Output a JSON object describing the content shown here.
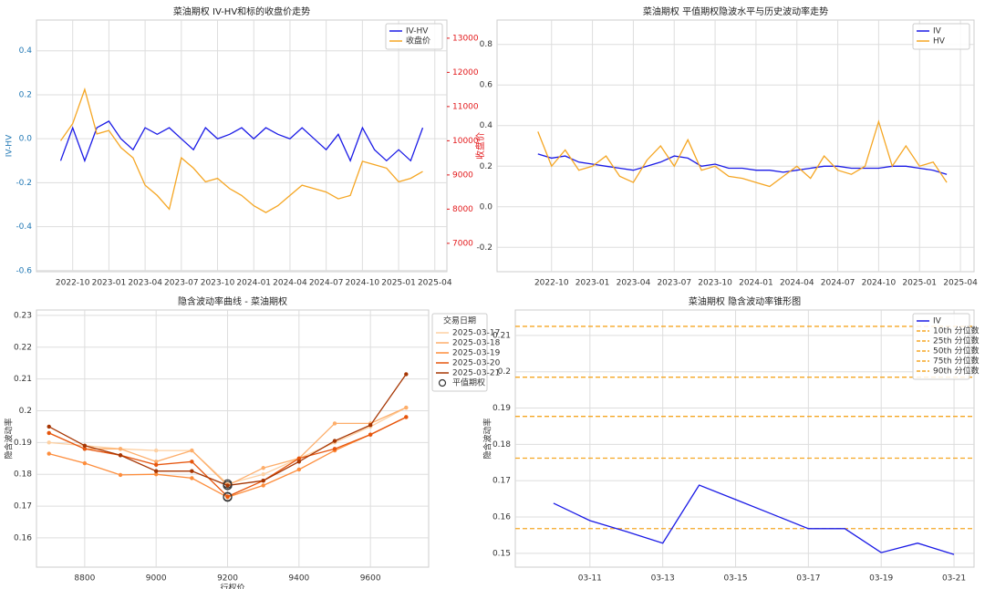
{
  "chart_data": [
    {
      "type": "line",
      "title": "菜油期权 IV-HV和标的收盘价走势",
      "ylabel": "IV-HV",
      "y2label": "收盘价",
      "ycolor": "#1f77b4",
      "y2color": "#e31a1c",
      "grid": true,
      "legend": "upper right",
      "x": [
        "2022-09",
        "2022-10",
        "2022-11",
        "2022-12",
        "2023-01",
        "2023-02",
        "2023-03",
        "2023-04",
        "2023-05",
        "2023-06",
        "2023-07",
        "2023-08",
        "2023-09",
        "2023-10",
        "2023-11",
        "2023-12",
        "2024-01",
        "2024-02",
        "2024-03",
        "2024-04",
        "2024-05",
        "2024-06",
        "2024-07",
        "2024-08",
        "2024-09",
        "2024-10",
        "2024-11",
        "2024-12",
        "2025-01",
        "2025-02",
        "2025-03"
      ],
      "xlim": [
        "2022-07",
        "2025-05"
      ],
      "xticks": [
        "2022-10",
        "2023-01",
        "2023-04",
        "2023-07",
        "2023-10",
        "2024-01",
        "2024-04",
        "2024-07",
        "2024-10",
        "2025-01",
        "2025-04"
      ],
      "ylim": [
        -0.605,
        0.54
      ],
      "yticks": [
        -0.6,
        -0.4,
        -0.2,
        {
          "value": 0,
          "label": "0.0"
        },
        0.2,
        0.4
      ],
      "y2lim": [
        6170,
        13530
      ],
      "y2ticks": [
        7000,
        8000,
        9000,
        10000,
        11000,
        12000,
        13000
      ],
      "series": [
        {
          "name": "IV-HV",
          "color": "#1a1ae6",
          "values": [
            -0.1,
            0.05,
            -0.1,
            0.05,
            0.08,
            0.0,
            -0.05,
            0.05,
            0.02,
            0.05,
            0.0,
            -0.05,
            0.05,
            0.0,
            0.02,
            0.05,
            0.0,
            0.05,
            0.02,
            0.0,
            0.05,
            0.0,
            -0.05,
            0.02,
            -0.1,
            0.05,
            -0.05,
            -0.1,
            -0.05,
            -0.1,
            0.05
          ]
        },
        {
          "name": "收盘价",
          "color": "#f5a623",
          "axis": "y2",
          "values": [
            10000,
            10500,
            11500,
            10200,
            10300,
            9800,
            9500,
            8700,
            8400,
            8000,
            9500,
            9200,
            8800,
            8900,
            8600,
            8400,
            8100,
            7900,
            8100,
            8400,
            8700,
            8600,
            8500,
            8300,
            8400,
            9400,
            9300,
            9200,
            8800,
            8900,
            9100
          ]
        }
      ]
    },
    {
      "type": "line",
      "title": "菜油期权 平值期权隐波水平与历史波动率走势",
      "grid": true,
      "legend": "upper right",
      "x": [
        "2022-09",
        "2022-10",
        "2022-11",
        "2022-12",
        "2023-01",
        "2023-02",
        "2023-03",
        "2023-04",
        "2023-05",
        "2023-06",
        "2023-07",
        "2023-08",
        "2023-09",
        "2023-10",
        "2023-11",
        "2023-12",
        "2024-01",
        "2024-02",
        "2024-03",
        "2024-04",
        "2024-05",
        "2024-06",
        "2024-07",
        "2024-08",
        "2024-09",
        "2024-10",
        "2024-11",
        "2024-12",
        "2025-01",
        "2025-02",
        "2025-03"
      ],
      "xlim": [
        "2022-06",
        "2025-05"
      ],
      "xticks": [
        "2022-10",
        "2023-01",
        "2023-04",
        "2023-07",
        "2023-10",
        "2024-01",
        "2024-04",
        "2024-07",
        "2024-10",
        "2025-01",
        "2025-04"
      ],
      "ylim": [
        -0.32,
        0.92
      ],
      "yticks": [
        -0.2,
        {
          "value": 0,
          "label": "0.0"
        },
        0.2,
        0.4,
        0.6,
        0.8
      ],
      "series": [
        {
          "name": "IV",
          "color": "#1a1ae6",
          "values": [
            0.26,
            0.24,
            0.25,
            0.22,
            0.21,
            0.2,
            0.19,
            0.18,
            0.2,
            0.22,
            0.25,
            0.24,
            0.2,
            0.21,
            0.19,
            0.19,
            0.18,
            0.18,
            0.17,
            0.18,
            0.19,
            0.2,
            0.2,
            0.19,
            0.19,
            0.19,
            0.2,
            0.2,
            0.19,
            0.18,
            0.16
          ]
        },
        {
          "name": "HV",
          "color": "#f5a623",
          "values": [
            0.37,
            0.2,
            0.28,
            0.18,
            0.2,
            0.25,
            0.15,
            0.12,
            0.23,
            0.3,
            0.2,
            0.33,
            0.18,
            0.2,
            0.15,
            0.14,
            0.12,
            0.1,
            0.15,
            0.2,
            0.14,
            0.25,
            0.18,
            0.16,
            0.2,
            0.42,
            0.2,
            0.3,
            0.2,
            0.22,
            0.12
          ]
        }
      ]
    },
    {
      "type": "line",
      "title": "隐含波动率曲线 - 菜油期权",
      "xlabel": "行权价",
      "ylabel": "隐含波动率",
      "grid": true,
      "legend": "outside right",
      "legend_title": "交易日期",
      "markers": true,
      "atm": {
        "label": "平值期权",
        "x": 9200
      },
      "x": [
        8700,
        8800,
        8900,
        9000,
        9100,
        9200,
        9300,
        9400,
        9500,
        9600,
        9700
      ],
      "xlim": [
        8665,
        9763
      ],
      "xticks": [
        8800,
        9000,
        9200,
        9400,
        9600
      ],
      "ylim": [
        0.1508,
        0.2317
      ],
      "yticks": [
        0.16,
        0.17,
        0.18,
        0.19,
        0.2,
        0.21,
        0.22,
        0.23
      ],
      "series": [
        {
          "name": "2025-03-17",
          "color": "#fdd0a2",
          "values": [
            0.19,
            0.189,
            0.188,
            0.1875,
            0.1875,
            0.177,
            0.18,
            0.185,
            0.19,
            0.195,
            0.201
          ]
        },
        {
          "name": "2025-03-18",
          "color": "#fdae6b",
          "values": [
            0.193,
            0.188,
            0.188,
            0.184,
            0.1875,
            0.1765,
            0.182,
            0.185,
            0.196,
            0.196,
            0.201
          ]
        },
        {
          "name": "2025-03-19",
          "color": "#fd8d3c",
          "values": [
            0.1865,
            0.1835,
            0.1798,
            0.18,
            0.1788,
            0.1728,
            0.1765,
            0.1815,
            0.1875,
            0.1925,
            0.198
          ]
        },
        {
          "name": "2025-03-20",
          "color": "#e6550d",
          "values": [
            0.193,
            0.188,
            0.186,
            0.183,
            0.184,
            0.173,
            0.178,
            0.185,
            0.188,
            0.1925,
            0.198
          ]
        },
        {
          "name": "2025-03-21",
          "color": "#a63603",
          "values": [
            0.195,
            0.189,
            0.186,
            0.181,
            0.181,
            0.1765,
            0.178,
            0.184,
            0.1905,
            0.1955,
            0.2115
          ]
        }
      ]
    },
    {
      "type": "line",
      "title": "菜油期权 隐含波动率锥形图",
      "ylabel": "隐含波动率",
      "grid": true,
      "legend": "upper right",
      "x": [
        10,
        11,
        12,
        13,
        14,
        15,
        16,
        17,
        18,
        19,
        20,
        21
      ],
      "xlim": [
        8.95,
        21.55
      ],
      "xticks": [
        {
          "value": 11,
          "label": "03-11"
        },
        {
          "value": 13,
          "label": "03-13"
        },
        {
          "value": 15,
          "label": "03-15"
        },
        {
          "value": 17,
          "label": "03-17"
        },
        {
          "value": 19,
          "label": "03-19"
        },
        {
          "value": 21,
          "label": "03-21"
        }
      ],
      "ylim": [
        0.1462,
        0.217
      ],
      "yticks": [
        0.15,
        0.16,
        0.17,
        0.18,
        0.19,
        0.2,
        0.21
      ],
      "series": [
        {
          "name": "IV",
          "color": "#1a1ae6",
          "values": [
            0.1638,
            0.159,
            0.156,
            0.1528,
            0.1688,
            0.1648,
            0.1608,
            0.1568,
            0.1568,
            0.1502,
            0.1528,
            0.1497
          ]
        }
      ],
      "hlines": [
        {
          "name": "10th 分位数",
          "color": "#f5a623",
          "value": 0.1568
        },
        {
          "name": "25th 分位数",
          "color": "#f5a623",
          "value": 0.1762
        },
        {
          "name": "50th 分位数",
          "color": "#f5a623",
          "value": 0.1877
        },
        {
          "name": "75th 分位数",
          "color": "#f5a623",
          "value": 0.1985
        },
        {
          "name": "90th 分位数",
          "color": "#f5a623",
          "value": 0.2125
        }
      ]
    }
  ]
}
